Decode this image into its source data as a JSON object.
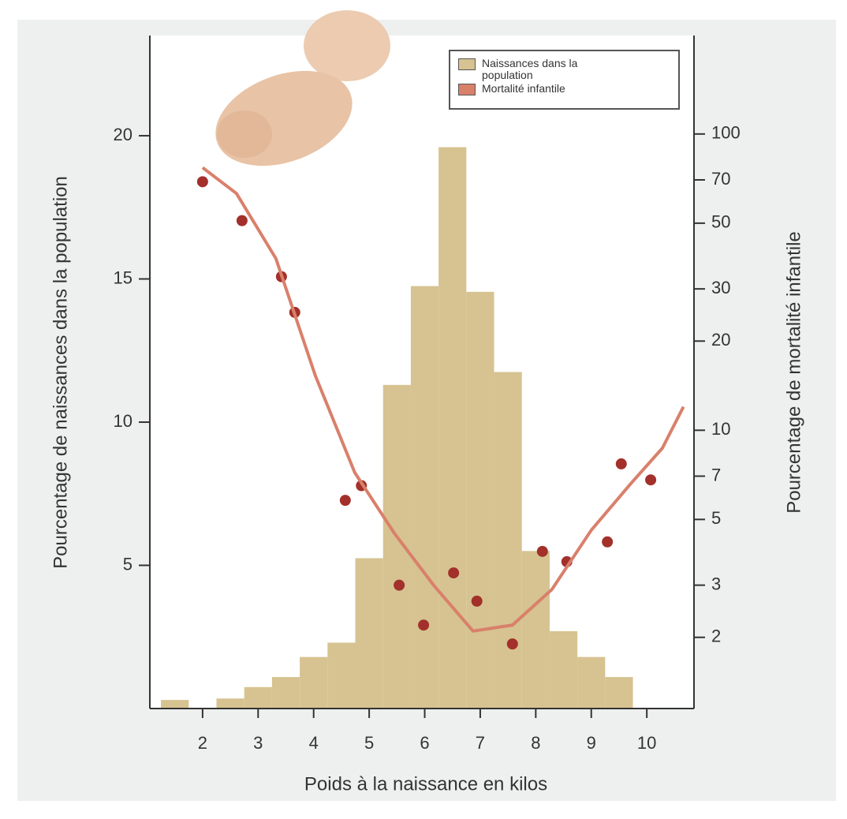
{
  "chart_data": [
    {
      "type": "histogram",
      "xlabel": "Poids à la naissance en kilos",
      "ylabel": "Pourcentage de naissances dans la population",
      "y2label": "Pourcentage de mortalité infantile",
      "bins": [
        1.25,
        1.75,
        2.25,
        2.75,
        3.25,
        3.75,
        4.25,
        4.75,
        5.25,
        5.75,
        6.25,
        6.75,
        7.25,
        7.75,
        8.25,
        8.75,
        9.25,
        9.75
      ],
      "series": [
        {
          "name": "Naissances dans la population",
          "color": "#d6c391",
          "values": [
            0.3,
            0,
            0.35,
            0.75,
            1.1,
            1.8,
            2.3,
            5.25,
            11.3,
            14.75,
            19.6,
            14.55,
            11.75,
            5.5,
            2.7,
            1.8,
            1.1
          ]
        }
      ],
      "xlim": [
        1.05,
        10.85
      ],
      "xticks": [
        2,
        3,
        4,
        5,
        6,
        7,
        8,
        9,
        10
      ],
      "ylim": [
        0,
        23.5
      ],
      "yticks": [
        5,
        10,
        15,
        20
      ],
      "y2lim": [
        1.15,
        215
      ],
      "y2ticks": [
        2,
        3,
        5,
        7,
        10,
        20,
        30,
        50,
        70,
        100
      ],
      "y2_log_scale": true,
      "legend": "upper right"
    },
    {
      "type": "scatter",
      "series": [
        {
          "color": "#a3302a",
          "axis": "y2",
          "x": [
            2.0,
            2.71,
            3.42,
            3.66,
            4.57,
            4.86,
            5.54,
            5.98,
            6.52,
            6.94,
            7.58,
            8.12,
            8.56,
            9.29,
            9.54,
            10.07
          ],
          "values": [
            69,
            51,
            33,
            25,
            5.8,
            6.5,
            3.0,
            2.2,
            3.3,
            2.65,
            1.9,
            3.9,
            3.6,
            4.2,
            7.7,
            6.8
          ]
        }
      ]
    },
    {
      "type": "line",
      "series": [
        {
          "name": "Mortalité infantile",
          "color": "#d9806b",
          "axis": "y2",
          "x": [
            2.0,
            2.61,
            3.32,
            4.03,
            4.74,
            5.45,
            6.16,
            6.87,
            7.58,
            8.29,
            9.0,
            9.71,
            10.28,
            10.66
          ],
          "values": [
            77,
            63,
            38,
            15.3,
            7.2,
            4.5,
            3.0,
            2.1,
            2.2,
            2.9,
            4.6,
            6.6,
            8.7,
            12
          ]
        }
      ]
    }
  ]
}
